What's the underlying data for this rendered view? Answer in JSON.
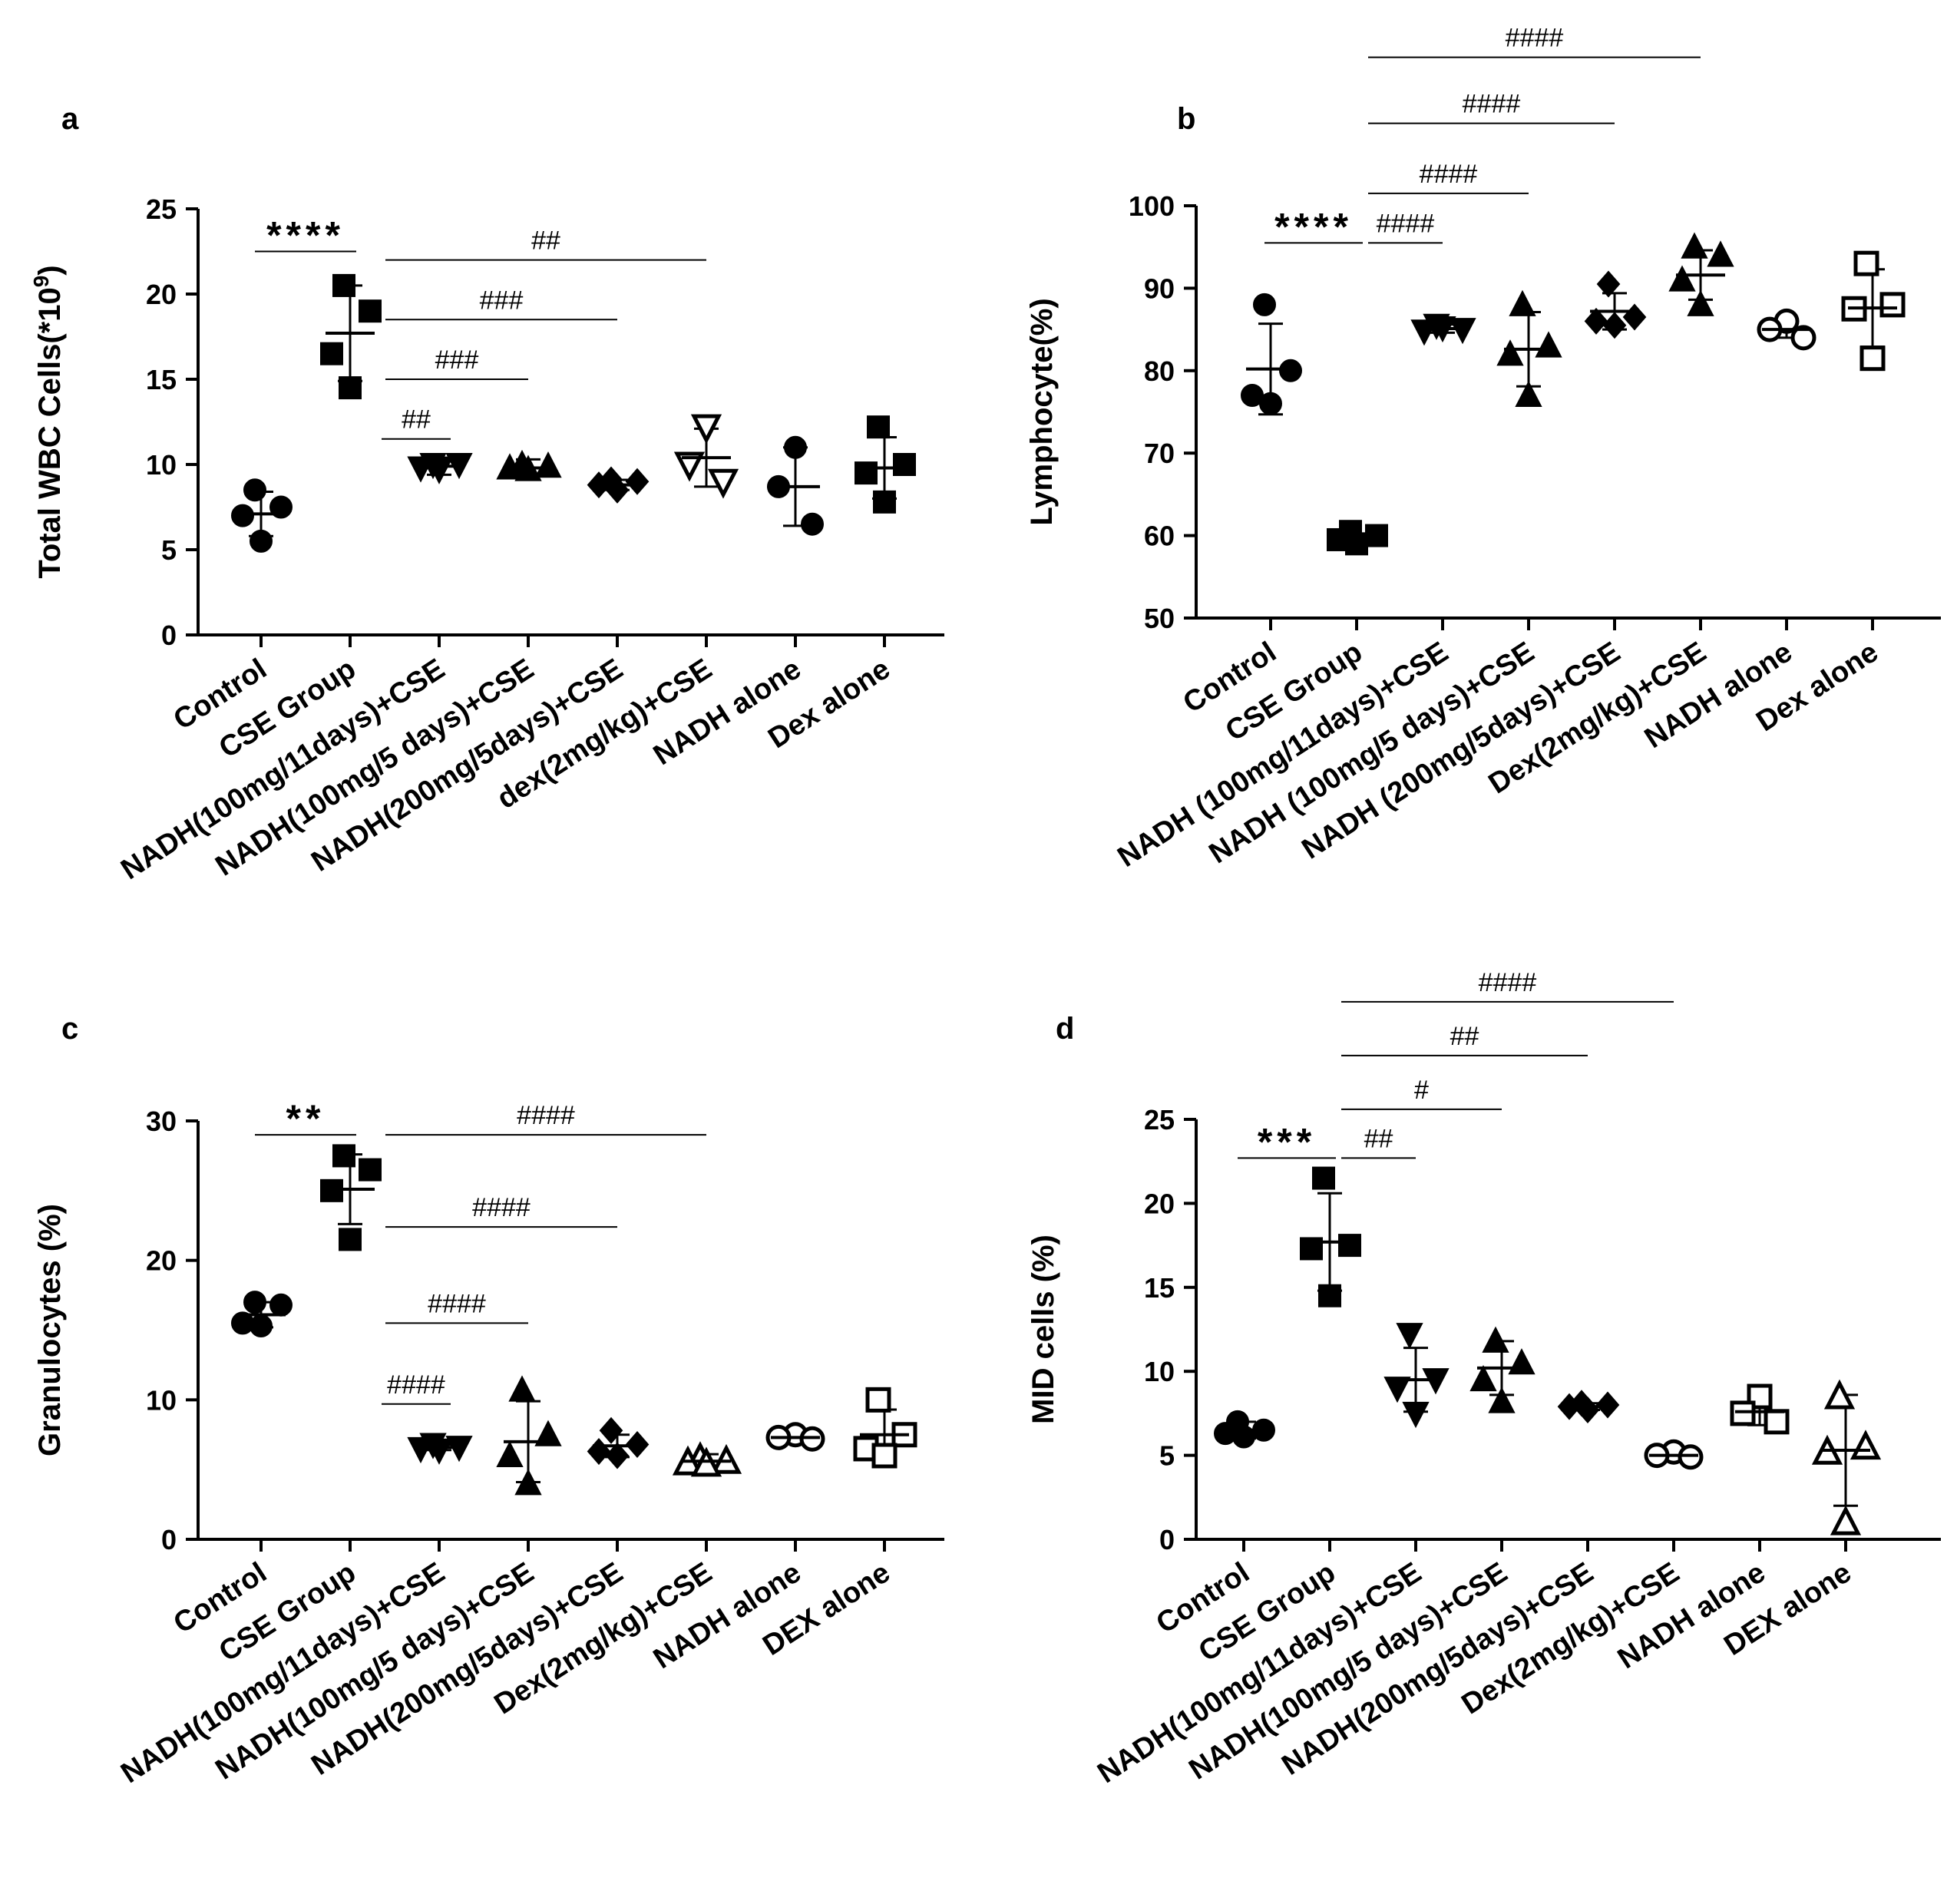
{
  "chart_data": [
    {
      "type": "scatter",
      "panel": "a",
      "ylabel": "Total WBC Cells(*10",
      "ylabel_sup": "9",
      "ylabel_close": ")",
      "ylim": [
        0,
        25
      ],
      "yticks": [
        0,
        5,
        10,
        15,
        20,
        25
      ],
      "categories": [
        "Control",
        "CSE Group",
        "NADH(100mg/11days)+CSE",
        "NADH(100mg/5 days)+CSE",
        "NADH(200mg/5days)+CSE",
        "dex(2mg/kg)+CSE",
        "NADH alone",
        "Dex alone"
      ],
      "groups": [
        {
          "marker": "circle",
          "fill": true,
          "points": [
            8.5,
            7.5,
            7.0,
            5.5
          ],
          "mean": 7.1,
          "sd": 1.3
        },
        {
          "marker": "square",
          "fill": true,
          "points": [
            20.5,
            19.0,
            16.5,
            14.5
          ],
          "mean": 17.7,
          "sd": 2.8
        },
        {
          "marker": "triangle-down",
          "fill": true,
          "points": [
            10.0,
            10.0,
            9.8,
            9.7
          ],
          "mean": 9.9,
          "sd": 0.5
        },
        {
          "marker": "triangle-up",
          "fill": true,
          "points": [
            10.0,
            9.9,
            9.8,
            9.7
          ],
          "mean": 9.8,
          "sd": 0.5
        },
        {
          "marker": "diamond",
          "fill": true,
          "points": [
            9.1,
            9.0,
            8.8,
            8.5
          ],
          "mean": 8.8,
          "sd": 0.3
        },
        {
          "marker": "triangle-down",
          "fill": false,
          "points": [
            12.2,
            10.0,
            9.0
          ],
          "mean": 10.4,
          "sd": 1.7
        },
        {
          "marker": "circle",
          "fill": true,
          "points": [
            11.0,
            8.7,
            6.5
          ],
          "mean": 8.7,
          "sd": 2.3
        },
        {
          "marker": "square",
          "fill": true,
          "points": [
            12.2,
            10.0,
            9.5,
            7.8
          ],
          "mean": 9.8,
          "sd": 1.8
        }
      ],
      "brackets": [
        {
          "from": 0,
          "to": 1,
          "label": "****",
          "kind": "star",
          "y": 22.5
        },
        {
          "from": 2,
          "to": 5,
          "label": "##",
          "kind": "hash",
          "y": 22.0
        },
        {
          "from": 2,
          "to": 4,
          "label": "###",
          "kind": "hash",
          "y": 18.5
        },
        {
          "from": 2,
          "to": 3,
          "label": "###",
          "kind": "hash",
          "y": 15.0
        },
        {
          "from": 2,
          "to": 2,
          "label": "##",
          "kind": "hash",
          "y": 11.5
        }
      ]
    },
    {
      "type": "scatter",
      "panel": "b",
      "ylabel": "Lymphocyte(%)",
      "ylim": [
        50,
        100
      ],
      "yticks": [
        50,
        60,
        70,
        80,
        90,
        100
      ],
      "categories": [
        "Control",
        "CSE Group",
        "NADH (100mg/11days)+CSE",
        "NADH (100mg/5 days)+CSE",
        "NADH (200mg/5days)+CSE",
        "Dex(2mg/kg)+CSE",
        "NADH alone",
        "Dex alone"
      ],
      "groups": [
        {
          "marker": "circle",
          "fill": true,
          "points": [
            88.0,
            80.0,
            77.0,
            76.0
          ],
          "mean": 80.2,
          "sd": 5.5
        },
        {
          "marker": "square",
          "fill": true,
          "points": [
            60.5,
            60.0,
            59.5,
            59.0
          ],
          "mean": 59.8,
          "sd": 0.4
        },
        {
          "marker": "triangle-down",
          "fill": true,
          "points": [
            85.5,
            85.0,
            84.8,
            85.2
          ],
          "mean": 85.1,
          "sd": 0.5
        },
        {
          "marker": "triangle-up",
          "fill": true,
          "points": [
            88.0,
            83.0,
            82.0,
            77.0
          ],
          "mean": 82.6,
          "sd": 4.5
        },
        {
          "marker": "diamond",
          "fill": true,
          "points": [
            90.5,
            86.5,
            86.0,
            85.5
          ],
          "mean": 87.2,
          "sd": 2.2
        },
        {
          "marker": "triangle-up",
          "fill": true,
          "points": [
            95.0,
            94.0,
            91.0,
            88.0
          ],
          "mean": 91.6,
          "sd": 3.0
        },
        {
          "marker": "circle",
          "fill": false,
          "points": [
            86.0,
            85.0,
            84.0
          ],
          "mean": 85.0,
          "sd": 1.0
        },
        {
          "marker": "square",
          "fill": false,
          "points": [
            93.0,
            88.0,
            87.5,
            81.5
          ],
          "mean": 87.6,
          "sd": 4.7
        }
      ],
      "brackets": [
        {
          "from": 0,
          "to": 1,
          "label": "****",
          "kind": "star",
          "y": 95.5
        },
        {
          "from": 1,
          "to": 2,
          "label": "####",
          "kind": "hash",
          "y": 95.5
        },
        {
          "from": 1,
          "to": 3,
          "label": "####",
          "kind": "hash",
          "y": 101.5
        },
        {
          "from": 1,
          "to": 4,
          "label": "####",
          "kind": "hash",
          "y": 110.0
        },
        {
          "from": 1,
          "to": 5,
          "label": "####",
          "kind": "hash",
          "y": 118.0
        }
      ]
    },
    {
      "type": "scatter",
      "panel": "c",
      "ylabel": "Granulocytes (%)",
      "ylim": [
        0,
        30
      ],
      "yticks": [
        0,
        10,
        20,
        30
      ],
      "categories": [
        "Control",
        "CSE Group",
        "NADH(100mg/11days)+CSE",
        "NADH(100mg/5 days)+CSE",
        "NADH(200mg/5days)+CSE",
        "Dex(2mg/kg)+CSE",
        "NADH alone",
        "DEX alone"
      ],
      "groups": [
        {
          "marker": "circle",
          "fill": true,
          "points": [
            17.0,
            16.8,
            15.5,
            15.3
          ],
          "mean": 16.1,
          "sd": 0.9
        },
        {
          "marker": "square",
          "fill": true,
          "points": [
            27.5,
            26.5,
            25.0,
            21.5
          ],
          "mean": 25.1,
          "sd": 2.5
        },
        {
          "marker": "triangle-down",
          "fill": true,
          "points": [
            6.8,
            6.6,
            6.5,
            6.4
          ],
          "mean": 6.6,
          "sd": 0.2
        },
        {
          "marker": "triangle-up",
          "fill": true,
          "points": [
            10.7,
            7.5,
            6.0,
            4.0
          ],
          "mean": 7.0,
          "sd": 2.9
        },
        {
          "marker": "diamond",
          "fill": true,
          "points": [
            7.8,
            6.8,
            6.3,
            6.0
          ],
          "mean": 6.7,
          "sd": 0.8
        },
        {
          "marker": "triangle-up",
          "fill": false,
          "points": [
            5.8,
            5.6,
            5.5,
            5.4
          ],
          "mean": 5.6,
          "sd": 0.5
        },
        {
          "marker": "circle",
          "fill": false,
          "points": [
            7.5,
            7.3,
            7.2
          ],
          "mean": 7.3,
          "sd": 0.2
        },
        {
          "marker": "square",
          "fill": false,
          "points": [
            10.0,
            7.5,
            6.5,
            6.0
          ],
          "mean": 7.5,
          "sd": 1.8
        }
      ],
      "brackets": [
        {
          "from": 0,
          "to": 1,
          "label": "**",
          "kind": "star",
          "y": 29.0
        },
        {
          "from": 2,
          "to": 5,
          "label": "####",
          "kind": "hash",
          "y": 29.0
        },
        {
          "from": 2,
          "to": 4,
          "label": "####",
          "kind": "hash",
          "y": 22.4
        },
        {
          "from": 2,
          "to": 3,
          "label": "####",
          "kind": "hash",
          "y": 15.5
        },
        {
          "from": 2,
          "to": 2,
          "label": "####",
          "kind": "hash",
          "y": 9.7
        }
      ]
    },
    {
      "type": "scatter",
      "panel": "d",
      "ylabel": "MID cells (%)",
      "ylim": [
        0,
        25
      ],
      "yticks": [
        0,
        5,
        10,
        15,
        20,
        25
      ],
      "categories": [
        "Control",
        "CSE Group",
        "NADH(100mg/11days)+CSE",
        "NADH(100mg/5 days)+CSE",
        "NADH(200mg/5days)+CSE",
        "Dex(2mg/kg)+CSE",
        "NADH alone",
        "DEX alone"
      ],
      "groups": [
        {
          "marker": "circle",
          "fill": true,
          "points": [
            7.0,
            6.5,
            6.3,
            6.1
          ],
          "mean": 6.5,
          "sd": 0.5
        },
        {
          "marker": "square",
          "fill": true,
          "points": [
            21.5,
            17.5,
            17.3,
            14.5
          ],
          "mean": 17.7,
          "sd": 2.9
        },
        {
          "marker": "triangle-down",
          "fill": true,
          "points": [
            12.2,
            9.5,
            9.0,
            7.5
          ],
          "mean": 9.5,
          "sd": 1.9
        },
        {
          "marker": "triangle-up",
          "fill": true,
          "points": [
            11.8,
            10.5,
            9.5,
            8.2
          ],
          "mean": 10.2,
          "sd": 1.6
        },
        {
          "marker": "diamond",
          "fill": true,
          "points": [
            8.1,
            8.0,
            7.9,
            7.7
          ],
          "mean": 7.9,
          "sd": 0.2
        },
        {
          "marker": "circle",
          "fill": false,
          "points": [
            5.2,
            5.0,
            4.9
          ],
          "mean": 5.0,
          "sd": 0.2
        },
        {
          "marker": "square",
          "fill": false,
          "points": [
            8.5,
            7.5,
            7.0
          ],
          "mean": 7.6,
          "sd": 0.8
        },
        {
          "marker": "triangle-up",
          "fill": false,
          "points": [
            8.5,
            5.5,
            5.2,
            1.0
          ],
          "mean": 5.3,
          "sd": 3.3
        }
      ],
      "brackets": [
        {
          "from": 0,
          "to": 1,
          "label": "***",
          "kind": "star",
          "y": 22.7
        },
        {
          "from": 1,
          "to": 2,
          "label": "##",
          "kind": "hash",
          "y": 22.7
        },
        {
          "from": 1,
          "to": 3,
          "label": "#",
          "kind": "hash",
          "y": 25.6
        },
        {
          "from": 1,
          "to": 4,
          "label": "##",
          "kind": "hash",
          "y": 28.8
        },
        {
          "from": 1,
          "to": 5,
          "label": "####",
          "kind": "hash",
          "y": 32.0
        }
      ]
    }
  ]
}
